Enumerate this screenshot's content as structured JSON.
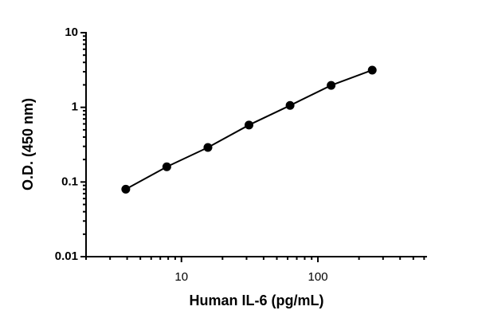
{
  "chart_data": {
    "type": "scatter",
    "x_label": "Human IL-6 (pg/mL)",
    "y_label": "O.D. (450 nm)",
    "x": [
      3.91,
      7.81,
      15.63,
      31.25,
      62.5,
      125,
      250
    ],
    "values": [
      0.08,
      0.16,
      0.29,
      0.58,
      1.06,
      1.97,
      3.15
    ],
    "color": "#000000",
    "connect": true,
    "xscale": "log",
    "yscale": "log",
    "xlim": [
      2,
      630
    ],
    "ylim": [
      0.01,
      10
    ],
    "xticks": [
      10,
      100
    ],
    "yticks": [
      0.01,
      0.1,
      1,
      10
    ],
    "xminorticks": [
      2,
      3,
      4,
      5,
      6,
      7,
      8,
      9,
      20,
      30,
      40,
      50,
      60,
      70,
      80,
      90,
      200,
      300,
      400,
      500,
      600
    ],
    "yminorticks": [
      0.02,
      0.03,
      0.04,
      0.05,
      0.06,
      0.07,
      0.08,
      0.09,
      0.2,
      0.3,
      0.4,
      0.5,
      0.6,
      0.7,
      0.8,
      0.9,
      2,
      3,
      4,
      5,
      6,
      7,
      8,
      9
    ],
    "grid": false
  }
}
